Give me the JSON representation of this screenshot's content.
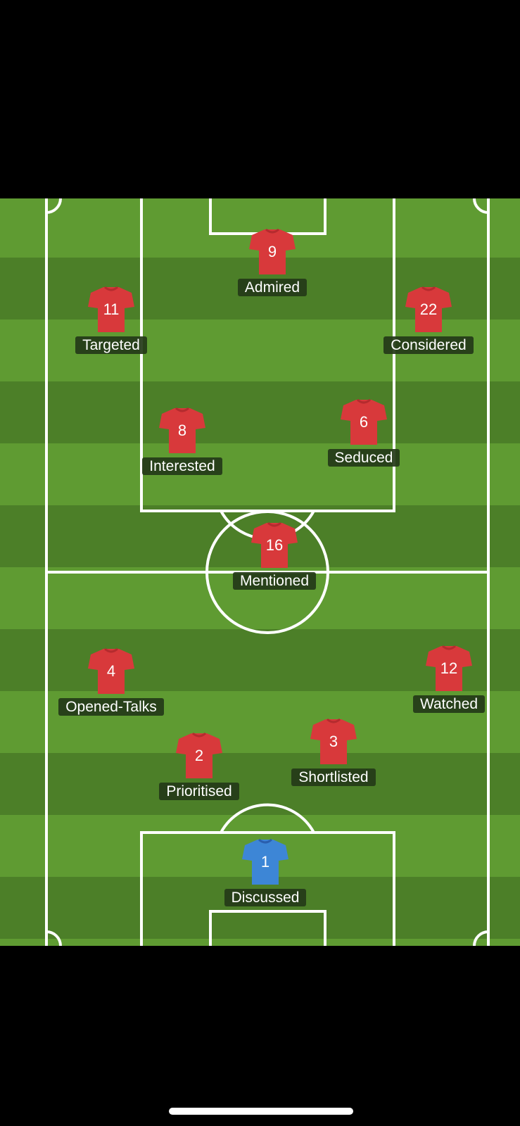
{
  "colors": {
    "pitch_light": "#5f9b32",
    "pitch_dark": "#4c7f28",
    "lines": "#ffffff",
    "outfield_shirt": "#d8393b",
    "goalkeeper_shirt": "#3d86d6",
    "label_bg": "#243a18"
  },
  "players": [
    {
      "number": "9",
      "label": "Admired",
      "kit": "outfield"
    },
    {
      "number": "11",
      "label": "Targeted",
      "kit": "outfield"
    },
    {
      "number": "22",
      "label": "Considered",
      "kit": "outfield"
    },
    {
      "number": "8",
      "label": "Interested",
      "kit": "outfield"
    },
    {
      "number": "6",
      "label": "Seduced",
      "kit": "outfield"
    },
    {
      "number": "16",
      "label": "Mentioned",
      "kit": "outfield"
    },
    {
      "number": "4",
      "label": "Opened-Talks",
      "kit": "outfield"
    },
    {
      "number": "12",
      "label": "Watched",
      "kit": "outfield"
    },
    {
      "number": "2",
      "label": "Prioritised",
      "kit": "outfield"
    },
    {
      "number": "3",
      "label": "Shortlisted",
      "kit": "outfield"
    },
    {
      "number": "1",
      "label": "Discussed",
      "kit": "goalkeeper"
    }
  ]
}
